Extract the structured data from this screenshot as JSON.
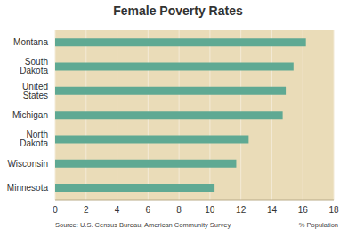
{
  "chart_data": {
    "type": "bar",
    "title": "Female Poverty Rates",
    "orientation": "horizontal",
    "categories": [
      "Montana",
      "South Dakota",
      "United States",
      "Michigan",
      "North Dakota",
      "Wisconsin",
      "Minnesota"
    ],
    "values": [
      16.2,
      15.4,
      14.9,
      14.7,
      12.5,
      11.7,
      10.3
    ],
    "color": "#5fa993",
    "xlim": [
      0,
      18
    ],
    "xticks": [
      0,
      2,
      4,
      6,
      8,
      10,
      12,
      14,
      16,
      18
    ],
    "grid": true,
    "x_label": "% Population",
    "annotations": [
      "Source: U.S. Census Bureau, American Community Survey"
    ]
  }
}
